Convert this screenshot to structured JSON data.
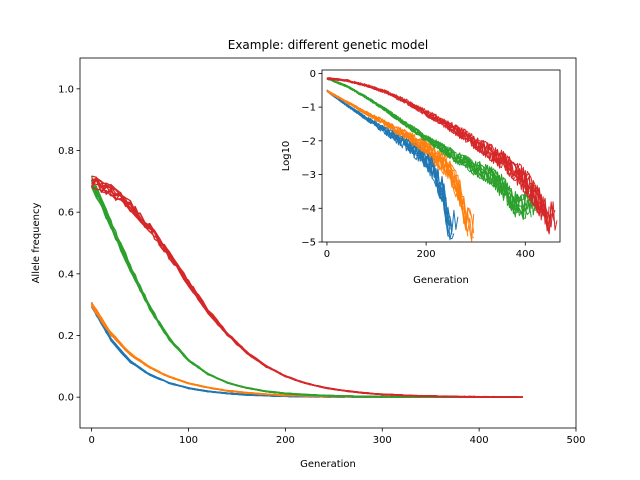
{
  "chart_data": [
    {
      "type": "line",
      "title": "Example: different genetic model",
      "xlabel": "Generation",
      "ylabel": "Allele frequency",
      "xlim": [
        -12,
        500
      ],
      "ylim": [
        -0.1,
        1.1
      ],
      "xticks": [
        0,
        100,
        200,
        300,
        400,
        500
      ],
      "yticks": [
        0.0,
        0.2,
        0.4,
        0.6,
        0.8,
        1.0
      ],
      "xtick_labels": [
        "0",
        "100",
        "200",
        "300",
        "400",
        "500"
      ],
      "ytick_labels": [
        "0.0",
        "0.2",
        "0.4",
        "0.6",
        "0.8",
        "1.0"
      ],
      "grid": false,
      "legend": false,
      "series": [
        {
          "color": "#1f77b4",
          "replicates": 10,
          "x": [
            0,
            20,
            40,
            60,
            80,
            100,
            120,
            140,
            160,
            180,
            200,
            240,
            280,
            320,
            360,
            400,
            440
          ],
          "y": [
            0.3,
            0.185,
            0.115,
            0.073,
            0.046,
            0.029,
            0.019,
            0.012,
            0.008,
            0.005,
            0.003,
            0.0015,
            0.0007,
            0.0003,
            0.0001,
            0.0001,
            0.0
          ]
        },
        {
          "color": "#ff7f0e",
          "replicates": 10,
          "x": [
            0,
            20,
            40,
            60,
            80,
            100,
            120,
            140,
            160,
            180,
            200,
            240,
            280,
            320,
            360,
            400,
            440
          ],
          "y": [
            0.3,
            0.205,
            0.14,
            0.096,
            0.066,
            0.045,
            0.031,
            0.021,
            0.014,
            0.009,
            0.006,
            0.003,
            0.0015,
            0.0007,
            0.0003,
            0.0001,
            0.0
          ]
        },
        {
          "color": "#2ca02c",
          "replicates": 10,
          "x": [
            0,
            20,
            40,
            60,
            80,
            100,
            120,
            140,
            160,
            180,
            200,
            220,
            240,
            280,
            320,
            360,
            400,
            440
          ],
          "y": [
            0.7,
            0.56,
            0.42,
            0.29,
            0.19,
            0.12,
            0.075,
            0.047,
            0.03,
            0.019,
            0.012,
            0.008,
            0.005,
            0.002,
            0.0009,
            0.0004,
            0.0002,
            0.0
          ]
        },
        {
          "color": "#d62728",
          "replicates": 10,
          "x": [
            0,
            20,
            40,
            60,
            80,
            100,
            120,
            140,
            160,
            180,
            200,
            220,
            240,
            260,
            280,
            300,
            340,
            380,
            420,
            445
          ],
          "y": [
            0.7,
            0.67,
            0.62,
            0.55,
            0.46,
            0.37,
            0.28,
            0.205,
            0.145,
            0.1,
            0.068,
            0.046,
            0.031,
            0.021,
            0.014,
            0.009,
            0.004,
            0.0015,
            0.0005,
            0.0
          ]
        }
      ]
    },
    {
      "type": "line",
      "title": "",
      "xlabel": "Generation",
      "ylabel": "Log10",
      "xlim": [
        -10,
        470
      ],
      "ylim": [
        -5,
        0.1
      ],
      "xticks": [
        0,
        200,
        400
      ],
      "yticks": [
        -5,
        -4,
        -3,
        -2,
        -1,
        0
      ],
      "xtick_labels": [
        "0",
        "200",
        "400"
      ],
      "ytick_labels": [
        "−5",
        "−4",
        "−3",
        "−2",
        "−1",
        "0"
      ],
      "grid": false,
      "legend": false,
      "series": [
        {
          "color": "#1f77b4",
          "replicates": 10,
          "x": [
            0,
            40,
            80,
            120,
            160,
            200,
            220,
            235,
            245
          ],
          "y": [
            -0.52,
            -0.94,
            -1.34,
            -1.72,
            -2.1,
            -2.52,
            -3.0,
            -3.6,
            -4.5
          ]
        },
        {
          "color": "#ff7f0e",
          "replicates": 10,
          "x": [
            0,
            40,
            80,
            120,
            160,
            200,
            240,
            265,
            285
          ],
          "y": [
            -0.52,
            -0.85,
            -1.18,
            -1.5,
            -1.84,
            -2.2,
            -2.75,
            -3.4,
            -4.5
          ]
        },
        {
          "color": "#2ca02c",
          "replicates": 10,
          "x": [
            0,
            40,
            80,
            120,
            160,
            200,
            240,
            280,
            320,
            350,
            375,
            390,
            410
          ],
          "y": [
            -0.15,
            -0.38,
            -0.72,
            -1.1,
            -1.52,
            -1.92,
            -2.3,
            -2.65,
            -2.95,
            -3.3,
            -3.8,
            -4.0,
            -3.8
          ]
        },
        {
          "color": "#d62728",
          "replicates": 10,
          "x": [
            0,
            40,
            80,
            120,
            160,
            200,
            240,
            280,
            320,
            360,
            400,
            420,
            445
          ],
          "y": [
            -0.15,
            -0.21,
            -0.36,
            -0.56,
            -0.84,
            -1.17,
            -1.5,
            -1.86,
            -2.25,
            -2.65,
            -3.2,
            -3.6,
            -4.3
          ]
        }
      ]
    }
  ]
}
